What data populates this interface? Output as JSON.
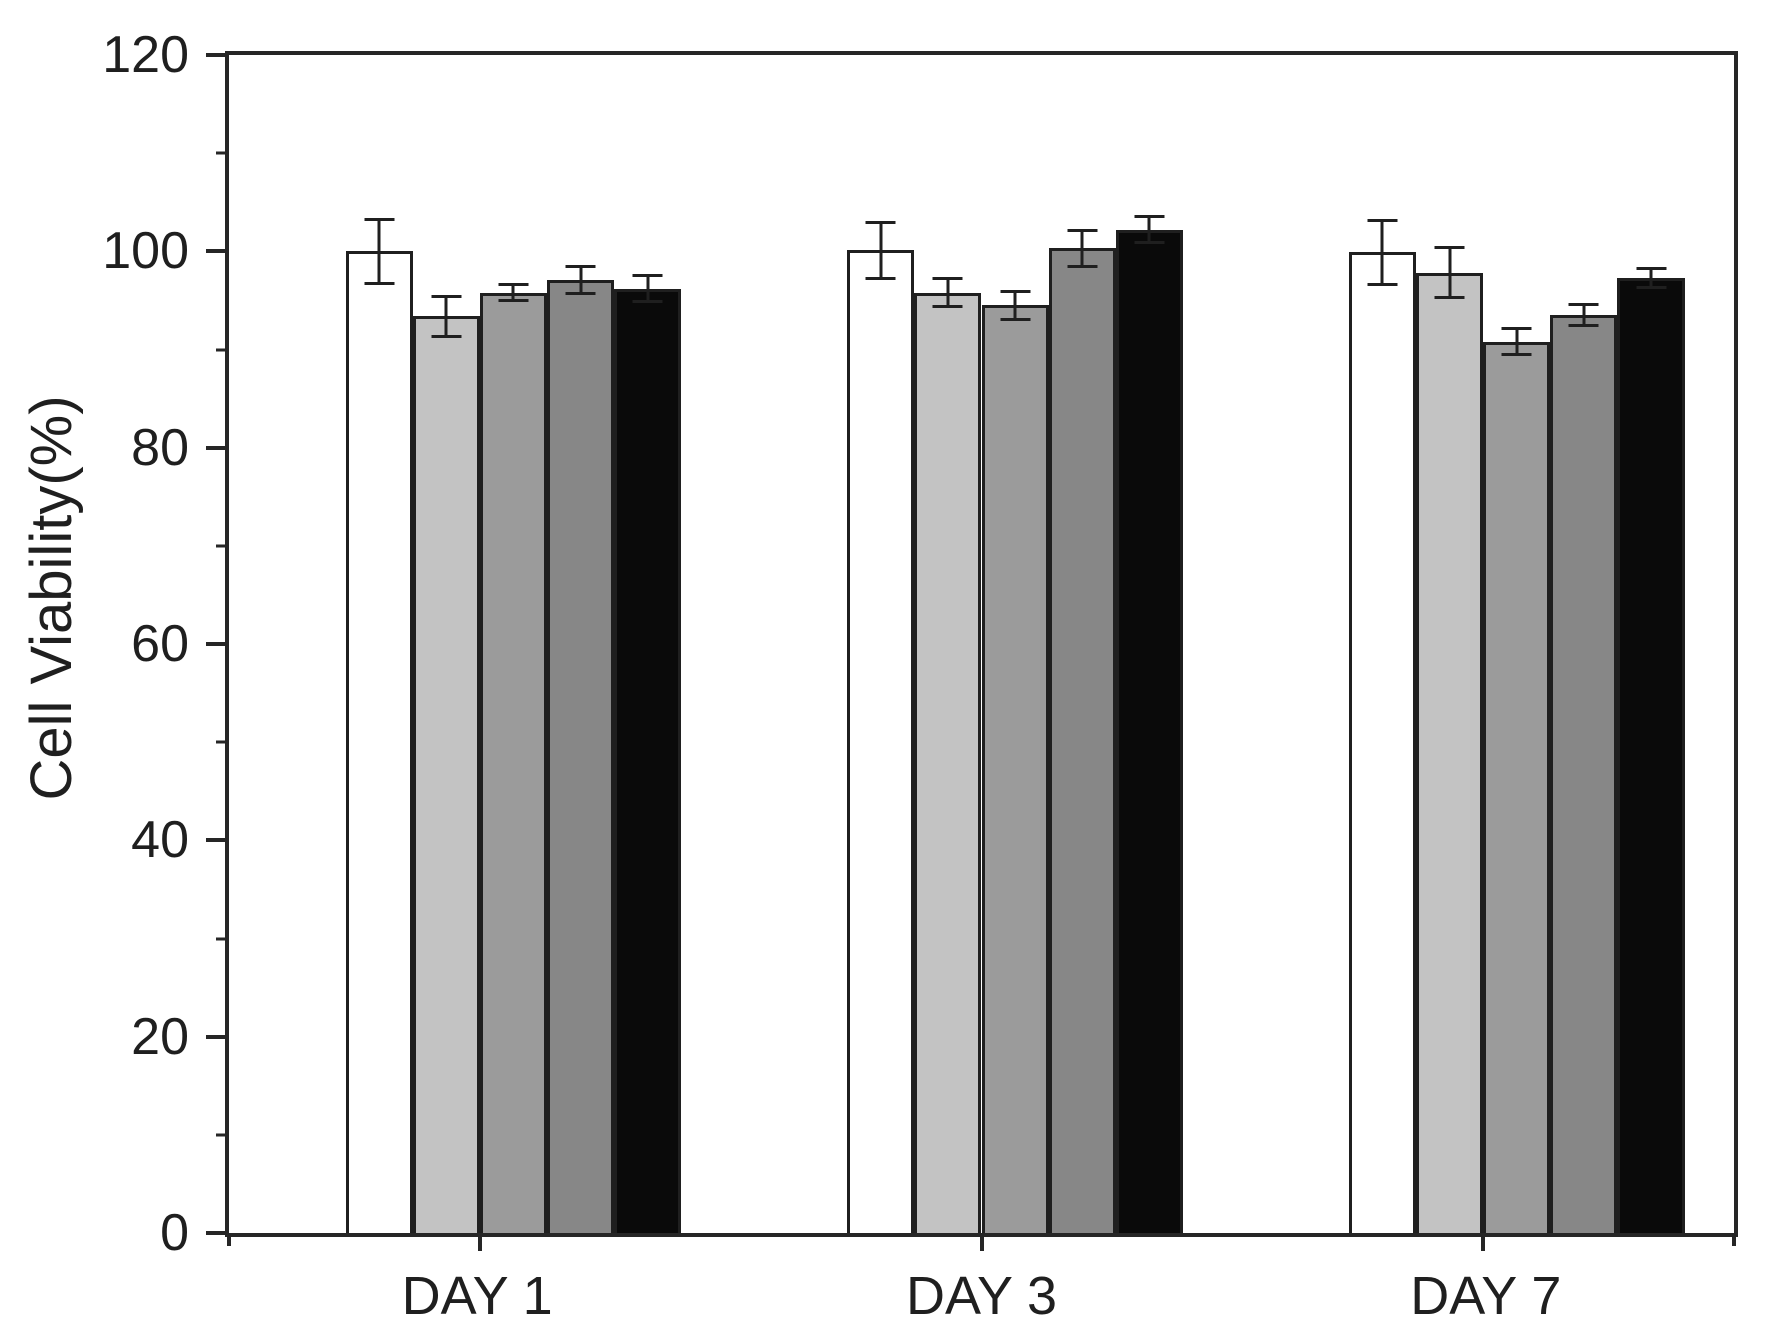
{
  "figure": {
    "background": "#ffffff",
    "frame_color": "#262626",
    "text_color": "#1f1f1f"
  },
  "chart_data": {
    "type": "bar",
    "title": "",
    "xlabel": "",
    "ylabel": "Cell Viability(%)",
    "ylim": [
      0,
      120
    ],
    "yticks_major": [
      0,
      20,
      40,
      60,
      80,
      100,
      120
    ],
    "yticks_minor": [
      10,
      30,
      50,
      70,
      90,
      110
    ],
    "categories": [
      "DAY 1",
      "DAY 3",
      "DAY 7"
    ],
    "grid": false,
    "legend": "none",
    "bar_outline": "#1f1f1f",
    "error_bar_color": "#1f1f1f",
    "series": [
      {
        "name": "white",
        "color": "#ffffff",
        "values": [
          100.0,
          100.1,
          99.9
        ],
        "errors": [
          3.4,
          3.0,
          3.4
        ]
      },
      {
        "name": "light-gray",
        "color": "#c3c3c3",
        "values": [
          93.4,
          95.8,
          97.8
        ],
        "errors": [
          2.2,
          1.6,
          2.7
        ]
      },
      {
        "name": "gray",
        "color": "#9b9b9b",
        "values": [
          95.8,
          94.5,
          90.8
        ],
        "errors": [
          1.0,
          1.6,
          1.5
        ]
      },
      {
        "name": "dark-gray",
        "color": "#878787",
        "values": [
          97.1,
          100.3,
          93.5
        ],
        "errors": [
          1.5,
          2.0,
          1.2
        ]
      },
      {
        "name": "black",
        "color": "#0a0a0a",
        "values": [
          96.2,
          102.2,
          97.3
        ],
        "errors": [
          1.5,
          1.5,
          1.1
        ]
      }
    ]
  }
}
